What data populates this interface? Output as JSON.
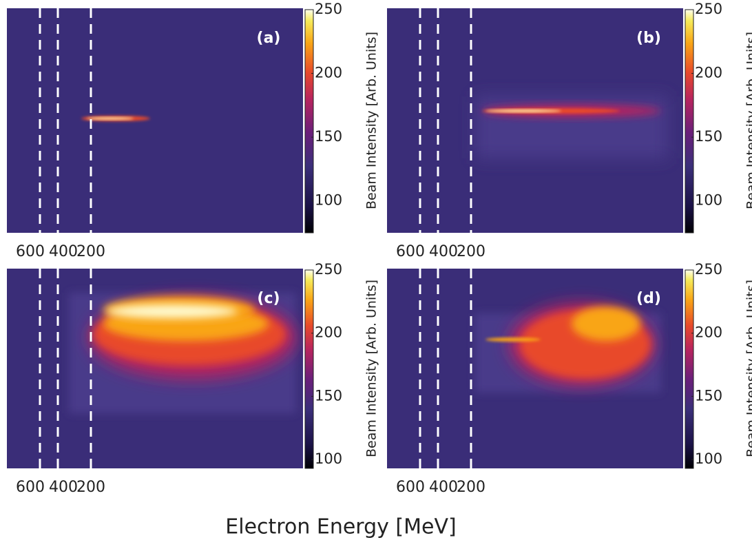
{
  "x_axis_label": "Electron Energy [MeV]",
  "colorbar_label": "Beam Intensity [Arb. Units]",
  "energy_markers": [
    600,
    400,
    200
  ],
  "panels": [
    {
      "label": "(a)",
      "clim": [
        75,
        250
      ],
      "cticks": [
        100,
        150,
        200,
        250
      ]
    },
    {
      "label": "(b)",
      "clim": [
        75,
        250
      ],
      "cticks": [
        100,
        150,
        200,
        250
      ]
    },
    {
      "label": "(c)",
      "clim": [
        93,
        250
      ],
      "cticks": [
        100,
        150,
        200,
        250
      ]
    },
    {
      "label": "(d)",
      "clim": [
        93,
        250
      ],
      "cticks": [
        100,
        150,
        200,
        250
      ]
    }
  ]
}
